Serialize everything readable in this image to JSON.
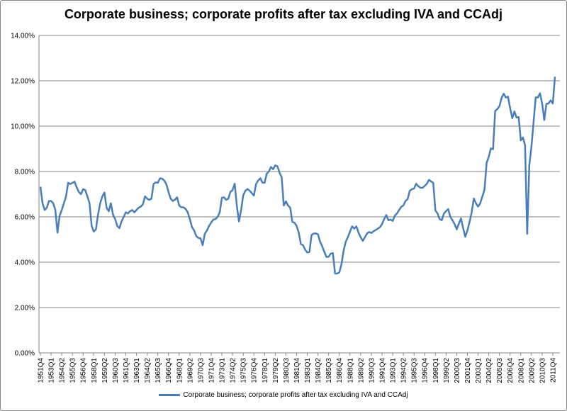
{
  "chart_data": {
    "type": "line",
    "title": "Corporate business; corporate profits after tax excluding IVA and CCAdj",
    "xlabel": "",
    "ylabel": "",
    "x_start": "1951Q4",
    "x_end": "2011Q4",
    "frequency": "quarterly",
    "ylim": [
      0,
      14
    ],
    "y_ticks": [
      "0.00%",
      "2.00%",
      "4.00%",
      "6.00%",
      "8.00%",
      "10.00%",
      "12.00%",
      "14.00%"
    ],
    "x_tick_labels": [
      "1951Q4",
      "1953Q1",
      "1954Q2",
      "1955Q3",
      "1956Q4",
      "1958Q1",
      "1959Q2",
      "1960Q3",
      "1961Q4",
      "1963Q1",
      "1964Q2",
      "1965Q3",
      "1966Q4",
      "1968Q1",
      "1969Q2",
      "1970Q3",
      "1971Q4",
      "1973Q1",
      "1974Q2",
      "1975Q3",
      "1976Q4",
      "1978Q1",
      "1979Q2",
      "1980Q3",
      "1981Q4",
      "1983Q1",
      "1984Q2",
      "1985Q3",
      "1986Q4",
      "1988Q1",
      "1989Q2",
      "1990Q3",
      "1991Q4",
      "1993Q1",
      "1994Q2",
      "1995Q3",
      "1996Q4",
      "1998Q1",
      "1999Q2",
      "2000Q3",
      "2001Q4",
      "2003Q1",
      "2004Q2",
      "2005Q3",
      "2006Q4",
      "2008Q1",
      "2009Q2",
      "2010Q3",
      "2011Q4"
    ],
    "grid": true,
    "legend_position": "bottom",
    "series": [
      {
        "name": "Corporate business; corporate profits after tax excluding IVA and CCAdj",
        "color": "#4a7ebb",
        "unit": "percent",
        "values": [
          7.33,
          6.6,
          6.3,
          6.4,
          6.7,
          6.7,
          6.6,
          6.3,
          5.3,
          6.05,
          6.3,
          6.6,
          6.9,
          7.5,
          7.45,
          7.5,
          7.55,
          7.3,
          7.1,
          7.0,
          7.22,
          7.18,
          6.9,
          6.6,
          5.6,
          5.35,
          5.45,
          6.1,
          6.6,
          6.9,
          7.07,
          6.4,
          6.25,
          6.6,
          6.1,
          5.9,
          5.6,
          5.5,
          5.8,
          6.0,
          6.2,
          6.15,
          6.25,
          6.3,
          6.2,
          6.3,
          6.4,
          6.45,
          6.55,
          6.9,
          6.8,
          6.75,
          6.8,
          7.45,
          7.52,
          7.5,
          7.7,
          7.68,
          7.6,
          7.44,
          7.1,
          6.8,
          6.7,
          6.75,
          6.86,
          6.5,
          6.42,
          6.42,
          6.35,
          6.2,
          5.9,
          5.55,
          5.4,
          5.15,
          5.07,
          5.05,
          4.75,
          5.25,
          5.4,
          5.6,
          5.75,
          5.88,
          5.9,
          6.0,
          6.2,
          6.84,
          6.86,
          6.75,
          6.8,
          7.1,
          7.18,
          7.46,
          6.5,
          5.8,
          6.3,
          6.95,
          7.15,
          7.23,
          7.15,
          7.05,
          6.94,
          7.44,
          7.6,
          7.7,
          7.51,
          7.5,
          7.9,
          8.0,
          8.2,
          8.1,
          8.27,
          8.23,
          7.95,
          7.75,
          6.5,
          6.68,
          6.5,
          6.4,
          5.78,
          5.74,
          5.6,
          5.3,
          4.8,
          4.75,
          4.55,
          4.43,
          4.45,
          5.2,
          5.26,
          5.27,
          5.23,
          4.9,
          4.7,
          4.45,
          4.23,
          4.24,
          4.38,
          4.4,
          3.5,
          3.5,
          3.55,
          3.9,
          4.5,
          4.9,
          5.1,
          5.35,
          5.58,
          5.48,
          5.58,
          5.3,
          5.1,
          4.94,
          5.1,
          5.27,
          5.33,
          5.29,
          5.36,
          5.42,
          5.48,
          5.54,
          5.68,
          5.9,
          6.08,
          5.85,
          5.88,
          5.82,
          6.05,
          6.15,
          6.3,
          6.44,
          6.5,
          6.7,
          6.78,
          7.15,
          7.22,
          7.25,
          7.46,
          7.35,
          7.28,
          7.28,
          7.36,
          7.46,
          7.63,
          7.56,
          7.5,
          6.28,
          6.15,
          5.9,
          5.85,
          6.15,
          6.25,
          6.34,
          6.0,
          5.85,
          5.68,
          5.45,
          5.7,
          5.93,
          5.5,
          5.12,
          5.4,
          5.77,
          6.2,
          6.81,
          6.6,
          6.45,
          6.6,
          6.9,
          7.2,
          8.38,
          8.65,
          9.02,
          8.98,
          10.67,
          10.75,
          10.88,
          11.24,
          11.43,
          11.26,
          11.3,
          10.8,
          10.35,
          10.65,
          10.38,
          10.4,
          9.37,
          9.5,
          9.16,
          5.25,
          8.27,
          9.1,
          10.2,
          11.27,
          11.26,
          11.45,
          11.0,
          10.27,
          10.98,
          11.0,
          11.14,
          11.0,
          12.18
        ]
      }
    ]
  }
}
